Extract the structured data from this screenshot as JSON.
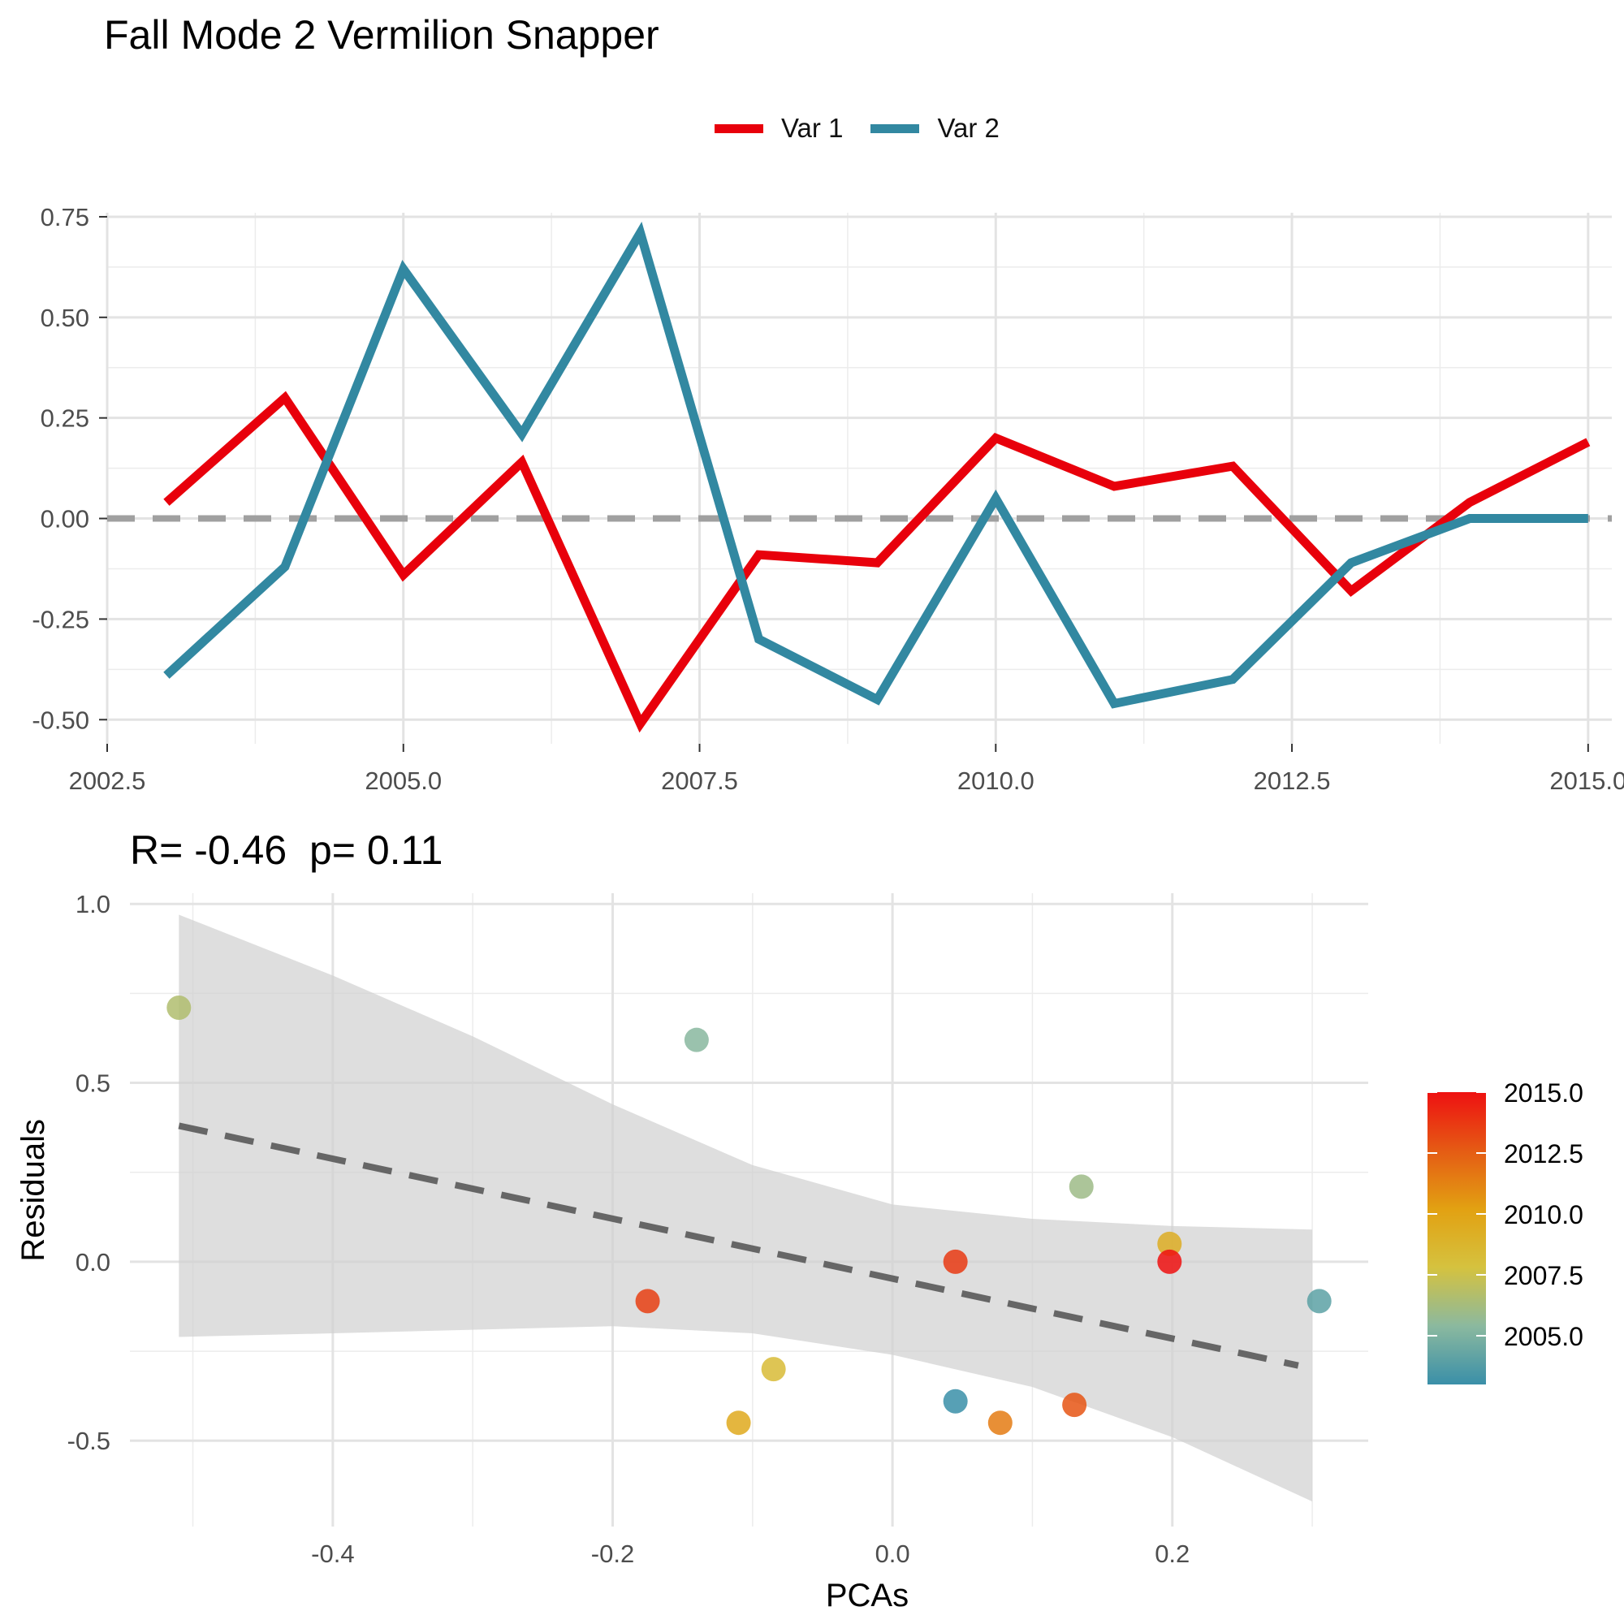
{
  "title": "Fall Mode 2 Vermilion Snapper",
  "legend": {
    "items": [
      {
        "label": "Var 1",
        "color": "#e8000b"
      },
      {
        "label": "Var 2",
        "color": "#3288a1"
      }
    ]
  },
  "bottom": {
    "subtitle": "R= -0.46  p= 0.11",
    "colorbar_ticks": [
      "2015.0",
      "2012.5",
      "2010.0",
      "2007.5",
      "2005.0"
    ]
  },
  "chart_data": [
    {
      "type": "line",
      "title": "Fall Mode 2 Vermilion Snapper",
      "xlabel": "",
      "ylabel": "",
      "x": [
        2003,
        2004,
        2005,
        2006,
        2007,
        2008,
        2009,
        2010,
        2011,
        2012,
        2013,
        2014,
        2015
      ],
      "series": [
        {
          "name": "Var 1",
          "color": "#e8000b",
          "values": [
            0.04,
            0.3,
            -0.14,
            0.14,
            -0.51,
            -0.09,
            -0.11,
            0.2,
            0.08,
            0.13,
            -0.18,
            0.04,
            0.19
          ]
        },
        {
          "name": "Var 2",
          "color": "#3288a1",
          "values": [
            -0.39,
            -0.12,
            0.62,
            0.21,
            0.71,
            -0.3,
            -0.45,
            0.05,
            -0.46,
            -0.4,
            -0.11,
            0.0,
            0.0
          ]
        }
      ],
      "reference_line": {
        "y": 0,
        "style": "dashed",
        "color": "#a0a0a0"
      },
      "xlim": [
        2002.5,
        2015.2
      ],
      "ylim": [
        -0.56,
        0.76
      ],
      "xticks": [
        "2002.5",
        "2005.0",
        "2007.5",
        "2010.0",
        "2012.5",
        "2015.0"
      ],
      "yticks": [
        "0.75",
        "0.50",
        "0.25",
        "0.00",
        "-0.25",
        "-0.50"
      ],
      "legend_position": "top",
      "grid": true
    },
    {
      "type": "scatter",
      "title": "R= -0.46  p= 0.11",
      "xlabel": "PCAs",
      "ylabel": "Residuals",
      "points": [
        {
          "x": -0.51,
          "y": 0.71,
          "year": 2006.6
        },
        {
          "x": -0.14,
          "y": 0.62,
          "year": 2005.3
        },
        {
          "x": -0.175,
          "y": -0.11,
          "year": 2013.5
        },
        {
          "x": -0.11,
          "y": -0.45,
          "year": 2009.6
        },
        {
          "x": -0.085,
          "y": -0.3,
          "year": 2008.3
        },
        {
          "x": 0.045,
          "y": 0.0,
          "year": 2013.7
        },
        {
          "x": 0.045,
          "y": -0.39,
          "year": 2003.0
        },
        {
          "x": 0.077,
          "y": -0.45,
          "year": 2011.5
        },
        {
          "x": 0.13,
          "y": -0.4,
          "year": 2012.8
        },
        {
          "x": 0.135,
          "y": 0.21,
          "year": 2006.0
        },
        {
          "x": 0.198,
          "y": 0.05,
          "year": 2009.3
        },
        {
          "x": 0.198,
          "y": 0.0,
          "year": 2015.0
        },
        {
          "x": 0.305,
          "y": -0.11,
          "year": 2004.0
        }
      ],
      "fit_line": {
        "x": [
          -0.51,
          0.29
        ],
        "y": [
          0.38,
          -0.29
        ],
        "style": "dashed",
        "color": "#666666"
      },
      "confidence_band": {
        "x": [
          -0.51,
          -0.4,
          -0.3,
          -0.2,
          -0.1,
          0.0,
          0.1,
          0.2,
          0.3
        ],
        "upper": [
          0.97,
          0.8,
          0.63,
          0.44,
          0.27,
          0.16,
          0.12,
          0.1,
          0.09
        ],
        "lower": [
          -0.21,
          -0.2,
          -0.19,
          -0.18,
          -0.2,
          -0.26,
          -0.35,
          -0.49,
          -0.67
        ]
      },
      "xlim": [
        -0.545,
        0.34
      ],
      "ylim": [
        -0.74,
        1.03
      ],
      "xticks": [
        "-0.4",
        "-0.2",
        "0.0",
        "0.2"
      ],
      "yticks": [
        "1.0",
        "0.5",
        "0.0",
        "-0.5"
      ],
      "colorbar": {
        "title": "",
        "range": [
          2003,
          2015
        ],
        "ticks": [
          "2015.0",
          "2012.5",
          "2010.0",
          "2007.5",
          "2005.0"
        ],
        "colors": [
          "#3a8fa8",
          "#8bb99f",
          "#d5c23f",
          "#e2a112",
          "#e55b14",
          "#ee1111"
        ]
      },
      "grid": true
    }
  ]
}
